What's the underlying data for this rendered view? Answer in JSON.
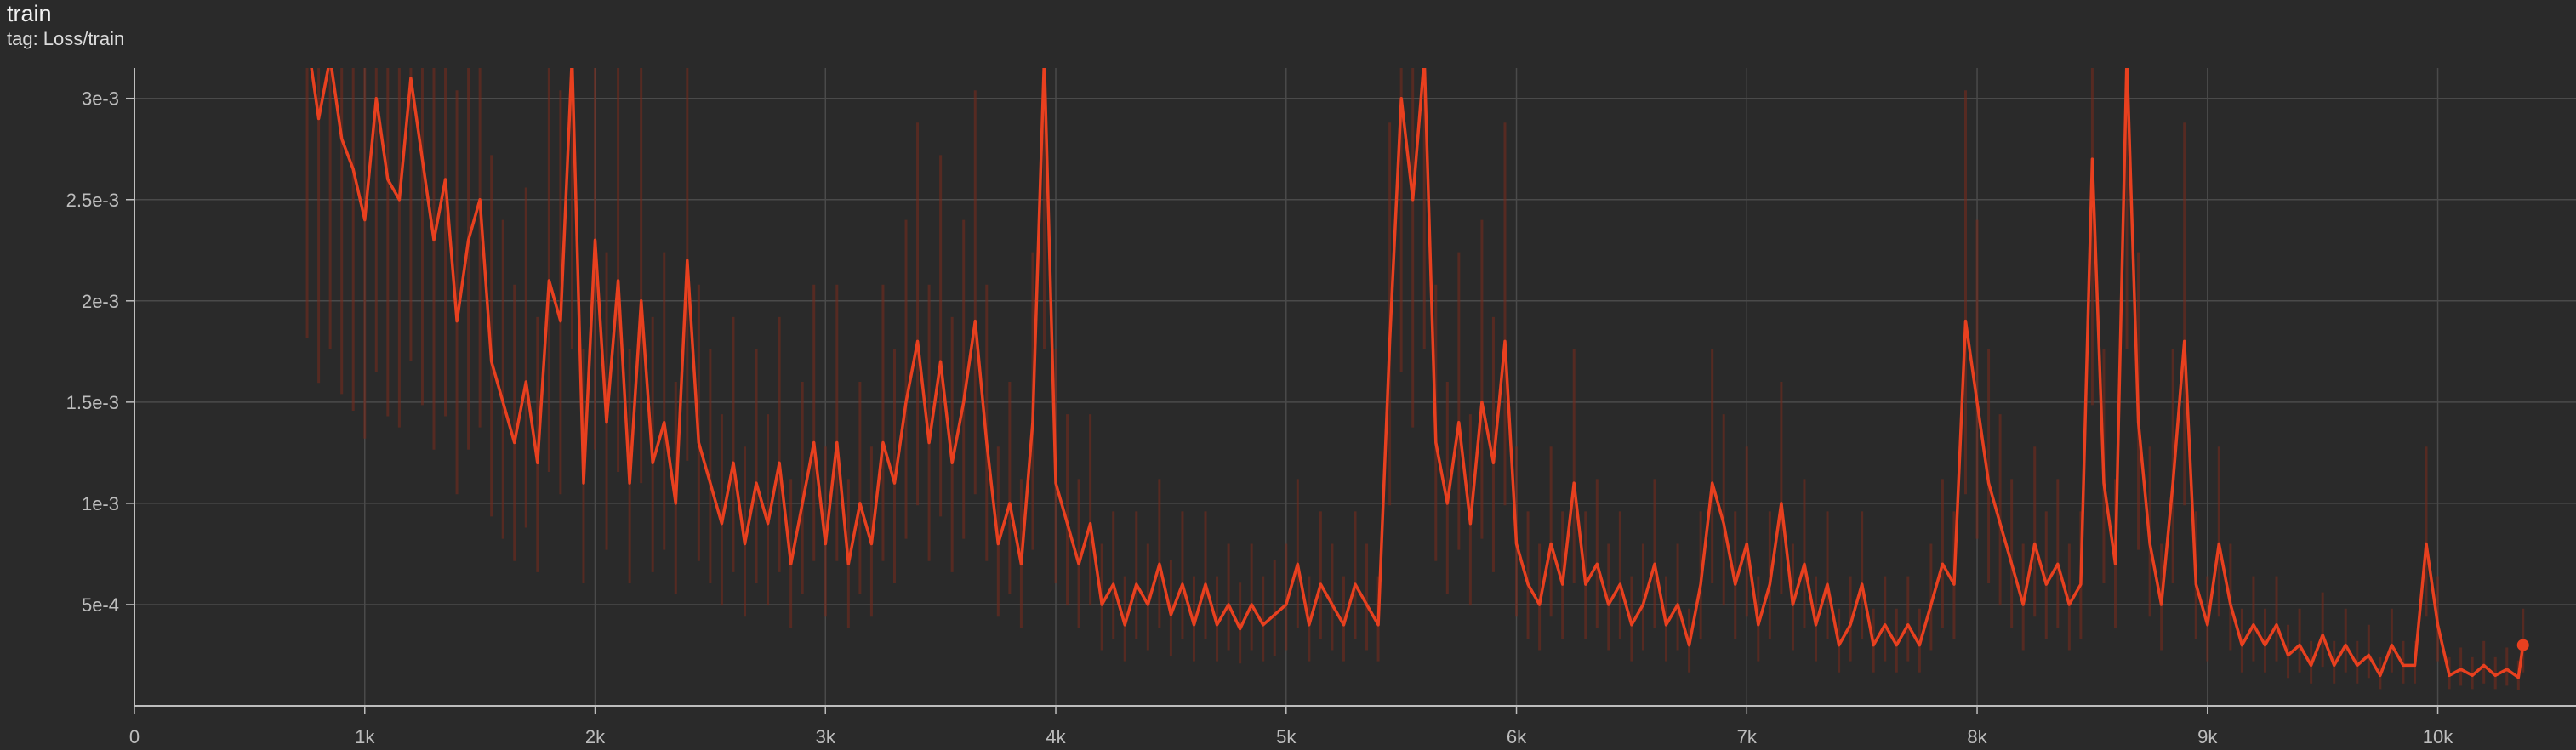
{
  "card": {
    "title": "train",
    "subtitle": "tag: Loss/train"
  },
  "colors": {
    "background": "#2a2a2a",
    "grid": "#4a4a4a",
    "axis": "#bdbdbd",
    "smoothed": "#e8401f",
    "raw": "#7a2a1c"
  },
  "chart_data": {
    "type": "line",
    "title": "train",
    "xlabel": "",
    "ylabel": "",
    "xlim": [
      0,
      10600
    ],
    "ylim": [
      0,
      0.00315
    ],
    "grid": true,
    "xticks": [
      0,
      1000,
      2000,
      3000,
      4000,
      5000,
      6000,
      7000,
      8000,
      9000,
      10000
    ],
    "xtick_labels": [
      "0",
      "1k",
      "2k",
      "3k",
      "4k",
      "5k",
      "6k",
      "7k",
      "8k",
      "9k",
      "10k"
    ],
    "yticks": [
      0.0005,
      0.001,
      0.0015,
      0.002,
      0.0025,
      0.003
    ],
    "ytick_labels": [
      "5e-4",
      "1e-3",
      "1.5e-3",
      "2e-3",
      "2.5e-3",
      "3e-3"
    ],
    "series": [
      {
        "style": "smoothed",
        "points": [
          [
            750,
            0.0033
          ],
          [
            800,
            0.0029
          ],
          [
            850,
            0.0032
          ],
          [
            900,
            0.0028
          ],
          [
            950,
            0.00265
          ],
          [
            1000,
            0.0024
          ],
          [
            1050,
            0.003
          ],
          [
            1100,
            0.0026
          ],
          [
            1150,
            0.0025
          ],
          [
            1200,
            0.0031
          ],
          [
            1250,
            0.0027
          ],
          [
            1300,
            0.0023
          ],
          [
            1350,
            0.0026
          ],
          [
            1400,
            0.0019
          ],
          [
            1450,
            0.0023
          ],
          [
            1500,
            0.0025
          ],
          [
            1550,
            0.0017
          ],
          [
            1600,
            0.0015
          ],
          [
            1650,
            0.0013
          ],
          [
            1700,
            0.0016
          ],
          [
            1750,
            0.0012
          ],
          [
            1800,
            0.0021
          ],
          [
            1850,
            0.0019
          ],
          [
            1900,
            0.0032
          ],
          [
            1950,
            0.0011
          ],
          [
            2000,
            0.0023
          ],
          [
            2050,
            0.0014
          ],
          [
            2100,
            0.0021
          ],
          [
            2150,
            0.0011
          ],
          [
            2200,
            0.002
          ],
          [
            2250,
            0.0012
          ],
          [
            2300,
            0.0014
          ],
          [
            2350,
            0.001
          ],
          [
            2400,
            0.0022
          ],
          [
            2450,
            0.0013
          ],
          [
            2500,
            0.0011
          ],
          [
            2550,
            0.0009
          ],
          [
            2600,
            0.0012
          ],
          [
            2650,
            0.0008
          ],
          [
            2700,
            0.0011
          ],
          [
            2750,
            0.0009
          ],
          [
            2800,
            0.0012
          ],
          [
            2850,
            0.0007
          ],
          [
            2900,
            0.001
          ],
          [
            2950,
            0.0013
          ],
          [
            3000,
            0.0008
          ],
          [
            3050,
            0.0013
          ],
          [
            3100,
            0.0007
          ],
          [
            3150,
            0.001
          ],
          [
            3200,
            0.0008
          ],
          [
            3250,
            0.0013
          ],
          [
            3300,
            0.0011
          ],
          [
            3350,
            0.0015
          ],
          [
            3400,
            0.0018
          ],
          [
            3450,
            0.0013
          ],
          [
            3500,
            0.0017
          ],
          [
            3550,
            0.0012
          ],
          [
            3600,
            0.0015
          ],
          [
            3650,
            0.0019
          ],
          [
            3700,
            0.0013
          ],
          [
            3750,
            0.0008
          ],
          [
            3800,
            0.001
          ],
          [
            3850,
            0.0007
          ],
          [
            3900,
            0.0014
          ],
          [
            3950,
            0.0032
          ],
          [
            4000,
            0.0011
          ],
          [
            4050,
            0.0009
          ],
          [
            4100,
            0.0007
          ],
          [
            4150,
            0.0009
          ],
          [
            4200,
            0.0005
          ],
          [
            4250,
            0.0006
          ],
          [
            4300,
            0.0004
          ],
          [
            4350,
            0.0006
          ],
          [
            4400,
            0.0005
          ],
          [
            4450,
            0.0007
          ],
          [
            4500,
            0.00045
          ],
          [
            4550,
            0.0006
          ],
          [
            4600,
            0.0004
          ],
          [
            4650,
            0.0006
          ],
          [
            4700,
            0.0004
          ],
          [
            4750,
            0.0005
          ],
          [
            4800,
            0.00038
          ],
          [
            4850,
            0.0005
          ],
          [
            4900,
            0.0004
          ],
          [
            4950,
            0.00045
          ],
          [
            5000,
            0.0005
          ],
          [
            5050,
            0.0007
          ],
          [
            5100,
            0.0004
          ],
          [
            5150,
            0.0006
          ],
          [
            5200,
            0.0005
          ],
          [
            5250,
            0.0004
          ],
          [
            5300,
            0.0006
          ],
          [
            5350,
            0.0005
          ],
          [
            5400,
            0.0004
          ],
          [
            5450,
            0.0018
          ],
          [
            5500,
            0.003
          ],
          [
            5550,
            0.0025
          ],
          [
            5600,
            0.0032
          ],
          [
            5650,
            0.0013
          ],
          [
            5700,
            0.001
          ],
          [
            5750,
            0.0014
          ],
          [
            5800,
            0.0009
          ],
          [
            5850,
            0.0015
          ],
          [
            5900,
            0.0012
          ],
          [
            5950,
            0.0018
          ],
          [
            6000,
            0.0008
          ],
          [
            6050,
            0.0006
          ],
          [
            6100,
            0.0005
          ],
          [
            6150,
            0.0008
          ],
          [
            6200,
            0.0006
          ],
          [
            6250,
            0.0011
          ],
          [
            6300,
            0.0006
          ],
          [
            6350,
            0.0007
          ],
          [
            6400,
            0.0005
          ],
          [
            6450,
            0.0006
          ],
          [
            6500,
            0.0004
          ],
          [
            6550,
            0.0005
          ],
          [
            6600,
            0.0007
          ],
          [
            6650,
            0.0004
          ],
          [
            6700,
            0.0005
          ],
          [
            6750,
            0.0003
          ],
          [
            6800,
            0.0006
          ],
          [
            6850,
            0.0011
          ],
          [
            6900,
            0.0009
          ],
          [
            6950,
            0.0006
          ],
          [
            7000,
            0.0008
          ],
          [
            7050,
            0.0004
          ],
          [
            7100,
            0.0006
          ],
          [
            7150,
            0.001
          ],
          [
            7200,
            0.0005
          ],
          [
            7250,
            0.0007
          ],
          [
            7300,
            0.0004
          ],
          [
            7350,
            0.0006
          ],
          [
            7400,
            0.0003
          ],
          [
            7450,
            0.0004
          ],
          [
            7500,
            0.0006
          ],
          [
            7550,
            0.0003
          ],
          [
            7600,
            0.0004
          ],
          [
            7650,
            0.0003
          ],
          [
            7700,
            0.0004
          ],
          [
            7750,
            0.0003
          ],
          [
            7800,
            0.0005
          ],
          [
            7850,
            0.0007
          ],
          [
            7900,
            0.0006
          ],
          [
            7950,
            0.0019
          ],
          [
            8000,
            0.0015
          ],
          [
            8050,
            0.0011
          ],
          [
            8100,
            0.0009
          ],
          [
            8150,
            0.0007
          ],
          [
            8200,
            0.0005
          ],
          [
            8250,
            0.0008
          ],
          [
            8300,
            0.0006
          ],
          [
            8350,
            0.0007
          ],
          [
            8400,
            0.0005
          ],
          [
            8450,
            0.0006
          ],
          [
            8500,
            0.0027
          ],
          [
            8550,
            0.0011
          ],
          [
            8600,
            0.0007
          ],
          [
            8650,
            0.0032
          ],
          [
            8700,
            0.0014
          ],
          [
            8750,
            0.0008
          ],
          [
            8800,
            0.0005
          ],
          [
            8850,
            0.0011
          ],
          [
            8900,
            0.0018
          ],
          [
            8950,
            0.0006
          ],
          [
            9000,
            0.0004
          ],
          [
            9050,
            0.0008
          ],
          [
            9100,
            0.0005
          ],
          [
            9150,
            0.0003
          ],
          [
            9200,
            0.0004
          ],
          [
            9250,
            0.0003
          ],
          [
            9300,
            0.0004
          ],
          [
            9350,
            0.00025
          ],
          [
            9400,
            0.0003
          ],
          [
            9450,
            0.0002
          ],
          [
            9500,
            0.00035
          ],
          [
            9550,
            0.0002
          ],
          [
            9600,
            0.0003
          ],
          [
            9650,
            0.0002
          ],
          [
            9700,
            0.00025
          ],
          [
            9750,
            0.00015
          ],
          [
            9800,
            0.0003
          ],
          [
            9850,
            0.0002
          ],
          [
            9900,
            0.0002
          ],
          [
            9950,
            0.0008
          ],
          [
            10000,
            0.0004
          ],
          [
            10050,
            0.00015
          ],
          [
            10100,
            0.00018
          ],
          [
            10150,
            0.00015
          ],
          [
            10200,
            0.0002
          ],
          [
            10250,
            0.00015
          ],
          [
            10300,
            0.00018
          ],
          [
            10350,
            0.00014
          ],
          [
            10370,
            0.0003
          ]
        ],
        "last_point": [
          10370,
          0.0003
        ]
      }
    ]
  }
}
